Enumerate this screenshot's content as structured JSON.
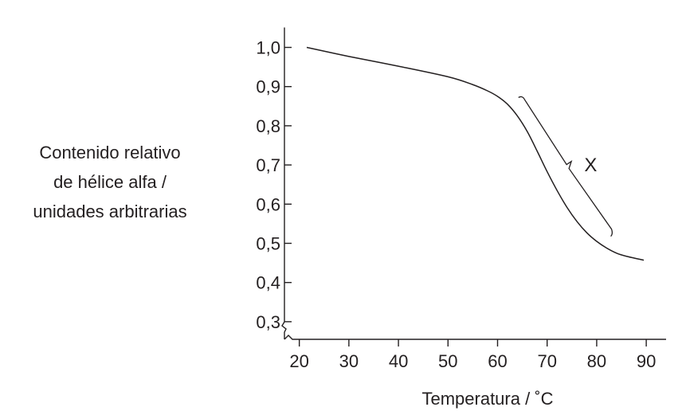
{
  "chart_data": {
    "type": "line",
    "title": "",
    "xlabel": "Temperatura / ˚C",
    "ylabel_lines": [
      "Contenido relativo",
      "de hélice alfa /",
      "unidades arbitrarias"
    ],
    "xlim": [
      17,
      94
    ],
    "ylim": [
      0.255,
      1.06
    ],
    "y_axis_broken": true,
    "x_ticks": [
      20,
      30,
      40,
      50,
      60,
      70,
      80,
      90
    ],
    "x_tick_labels": [
      "20",
      "30",
      "40",
      "50",
      "60",
      "70",
      "80",
      "90"
    ],
    "y_ticks": [
      0.3,
      0.4,
      0.5,
      0.6,
      0.7,
      0.8,
      0.9,
      1.0
    ],
    "y_tick_labels": [
      "0,3",
      "0,4",
      "0,5",
      "0,6",
      "0,7",
      "0,8",
      "0,9",
      "1,0"
    ],
    "grid": false,
    "series": [
      {
        "x": [
          21.5,
          30,
          40,
          50,
          55,
          58,
          60,
          62,
          64,
          66,
          68,
          70,
          72,
          74,
          76,
          78,
          80,
          82,
          84,
          86,
          89.5
        ],
        "y": [
          1.0,
          0.977,
          0.952,
          0.925,
          0.905,
          0.889,
          0.875,
          0.855,
          0.825,
          0.785,
          0.735,
          0.683,
          0.635,
          0.592,
          0.556,
          0.527,
          0.505,
          0.488,
          0.475,
          0.467,
          0.457
        ]
      }
    ],
    "annotations": [
      {
        "text": "X",
        "x": 77.5,
        "y": 0.7,
        "bracket_x": [
          65.5,
          83
        ],
        "bracket_y": [
          0.866,
          0.528
        ]
      }
    ]
  }
}
